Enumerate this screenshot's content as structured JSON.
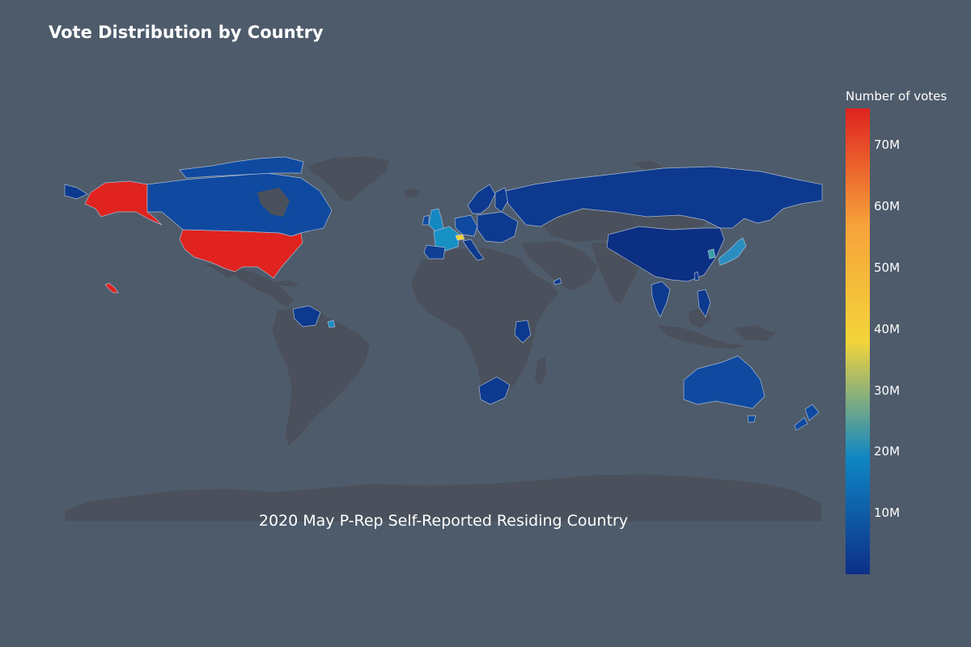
{
  "title": "Vote Distribution by Country",
  "subtitle": "2020 May P-Rep Self-Reported Residing Country",
  "colorbar": {
    "title": "Number of votes",
    "min": 0,
    "max": 76000000,
    "ticks": [
      {
        "label": "10M",
        "value": 10000000
      },
      {
        "label": "20M",
        "value": 20000000
      },
      {
        "label": "30M",
        "value": 30000000
      },
      {
        "label": "40M",
        "value": 40000000
      },
      {
        "label": "50M",
        "value": 50000000
      },
      {
        "label": "60M",
        "value": 60000000
      },
      {
        "label": "70M",
        "value": 70000000
      }
    ],
    "colorscale": [
      "#0d2f87",
      "#0f86c4",
      "#f3d43a",
      "#f6a23a",
      "#e0231f"
    ]
  },
  "colors": {
    "background": "#4d5b6b",
    "land_no_data": "#4a515c",
    "border": "#a8b8d0"
  },
  "chart_data": {
    "type": "choropleth",
    "locations": [
      {
        "name": "United States",
        "value": 76000000
      },
      {
        "name": "Canada",
        "value": 5000000
      },
      {
        "name": "France",
        "value": 18000000
      },
      {
        "name": "Switzerland",
        "value": 45000000
      },
      {
        "name": "United Kingdom",
        "value": 16000000
      },
      {
        "name": "Japan",
        "value": 14000000
      },
      {
        "name": "South Korea",
        "value": 20000000
      },
      {
        "name": "Trinidad and Tobago",
        "value": 18000000
      },
      {
        "name": "Australia",
        "value": 5000000
      },
      {
        "name": "Russia",
        "value": 1000000
      },
      {
        "name": "China",
        "value": 500000
      },
      {
        "name": "Spain",
        "value": 1500000
      },
      {
        "name": "Germany",
        "value": 2000000
      },
      {
        "name": "Scandinavia",
        "value": 1000000
      },
      {
        "name": "Venezuela",
        "value": 500000
      },
      {
        "name": "Kenya",
        "value": 500000
      },
      {
        "name": "South Africa",
        "value": 500000
      },
      {
        "name": "New Zealand",
        "value": 500000
      },
      {
        "name": "Thailand",
        "value": 500000
      },
      {
        "name": "Philippines",
        "value": 500000
      }
    ]
  }
}
